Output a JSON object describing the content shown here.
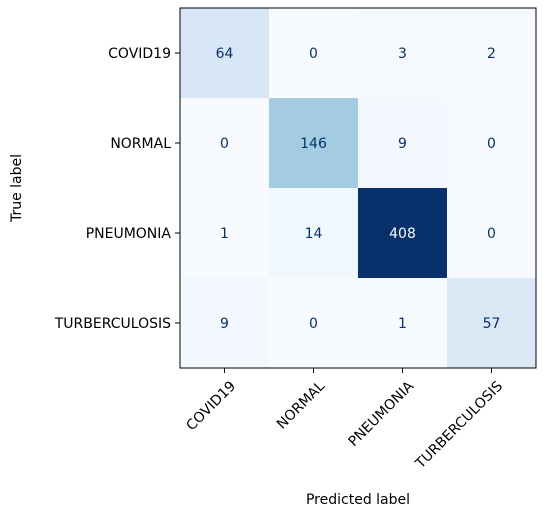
{
  "chart_data": {
    "type": "heatmap",
    "title": "",
    "xlabel": "Predicted label",
    "ylabel": "True label",
    "x_categories": [
      "COVID19",
      "NORMAL",
      "PNEUMONIA",
      "TURBERCULOSIS"
    ],
    "y_categories": [
      "COVID19",
      "NORMAL",
      "PNEUMONIA",
      "TURBERCULOSIS"
    ],
    "values": [
      [
        64,
        0,
        3,
        2
      ],
      [
        0,
        146,
        9,
        0
      ],
      [
        1,
        14,
        408,
        0
      ],
      [
        9,
        0,
        1,
        57
      ]
    ],
    "colormap": "Blues",
    "vmin": 0,
    "vmax": 408,
    "colors": {
      "low": "#f7fbff",
      "high": "#08306b",
      "text_dark": "#08306b",
      "text_light": "#f7fbff"
    }
  }
}
